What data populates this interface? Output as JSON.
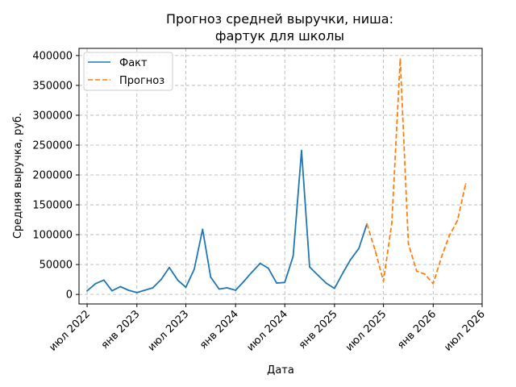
{
  "chart_data": {
    "type": "line",
    "title_lines": [
      "Прогноз средней выручки, ниша:",
      "фартук для школы"
    ],
    "xlabel": "Дата",
    "ylabel": "Средняя выручка, руб.",
    "x_range": [
      "2022-06-01",
      "2026-07-01"
    ],
    "ylim": [
      -16000,
      412000
    ],
    "x_ticks": [
      {
        "date": "2022-07-01",
        "label": "июл 2022"
      },
      {
        "date": "2023-01-01",
        "label": "янв 2023"
      },
      {
        "date": "2023-07-01",
        "label": "июл 2023"
      },
      {
        "date": "2024-01-01",
        "label": "янв 2024"
      },
      {
        "date": "2024-07-01",
        "label": "июл 2024"
      },
      {
        "date": "2025-01-01",
        "label": "янв 2025"
      },
      {
        "date": "2025-07-01",
        "label": "июл 2025"
      },
      {
        "date": "2026-01-01",
        "label": "янв 2026"
      },
      {
        "date": "2026-07-01",
        "label": "июл 2026"
      }
    ],
    "y_ticks": [
      0,
      50000,
      100000,
      150000,
      200000,
      250000,
      300000,
      350000,
      400000
    ],
    "grid": true,
    "legend_position": "top-left",
    "series": [
      {
        "name": "Факт",
        "color": "#1f77b4",
        "style": "solid",
        "points": [
          {
            "x": "2022-07-01",
            "y": 6000
          },
          {
            "x": "2022-08-01",
            "y": 18000
          },
          {
            "x": "2022-09-01",
            "y": 24000
          },
          {
            "x": "2022-10-01",
            "y": 6000
          },
          {
            "x": "2022-11-01",
            "y": 13000
          },
          {
            "x": "2022-12-01",
            "y": 7000
          },
          {
            "x": "2023-01-01",
            "y": 3000
          },
          {
            "x": "2023-03-01",
            "y": 11000
          },
          {
            "x": "2023-04-01",
            "y": 25000
          },
          {
            "x": "2023-05-01",
            "y": 45000
          },
          {
            "x": "2023-06-01",
            "y": 24000
          },
          {
            "x": "2023-07-01",
            "y": 12000
          },
          {
            "x": "2023-08-01",
            "y": 42000
          },
          {
            "x": "2023-09-01",
            "y": 109000
          },
          {
            "x": "2023-10-01",
            "y": 29000
          },
          {
            "x": "2023-11-01",
            "y": 9000
          },
          {
            "x": "2023-12-01",
            "y": 11000
          },
          {
            "x": "2024-01-01",
            "y": 7000
          },
          {
            "x": "2024-02-01",
            "y": 22000
          },
          {
            "x": "2024-03-01",
            "y": 37000
          },
          {
            "x": "2024-04-01",
            "y": 52000
          },
          {
            "x": "2024-05-01",
            "y": 44000
          },
          {
            "x": "2024-06-01",
            "y": 19000
          },
          {
            "x": "2024-07-01",
            "y": 20000
          },
          {
            "x": "2024-08-01",
            "y": 64000
          },
          {
            "x": "2024-09-01",
            "y": 241000
          },
          {
            "x": "2024-10-01",
            "y": 46000
          },
          {
            "x": "2024-11-01",
            "y": 32000
          },
          {
            "x": "2024-12-01",
            "y": 19000
          },
          {
            "x": "2025-01-01",
            "y": 10000
          },
          {
            "x": "2025-02-01",
            "y": 36000
          },
          {
            "x": "2025-03-01",
            "y": 58000
          },
          {
            "x": "2025-04-01",
            "y": 77000
          },
          {
            "x": "2025-05-01",
            "y": 118000
          }
        ]
      },
      {
        "name": "Прогноз",
        "color": "#ff7f0e",
        "style": "dashed",
        "points": [
          {
            "x": "2025-05-01",
            "y": 118000
          },
          {
            "x": "2025-06-01",
            "y": 73000
          },
          {
            "x": "2025-07-01",
            "y": 22000
          },
          {
            "x": "2025-08-01",
            "y": 120000
          },
          {
            "x": "2025-09-01",
            "y": 394000
          },
          {
            "x": "2025-10-01",
            "y": 85000
          },
          {
            "x": "2025-11-01",
            "y": 39000
          },
          {
            "x": "2025-12-01",
            "y": 34000
          },
          {
            "x": "2026-01-01",
            "y": 18000
          },
          {
            "x": "2026-02-01",
            "y": 63000
          },
          {
            "x": "2026-03-01",
            "y": 98000
          },
          {
            "x": "2026-04-01",
            "y": 124000
          },
          {
            "x": "2026-05-01",
            "y": 185000
          }
        ]
      }
    ]
  }
}
